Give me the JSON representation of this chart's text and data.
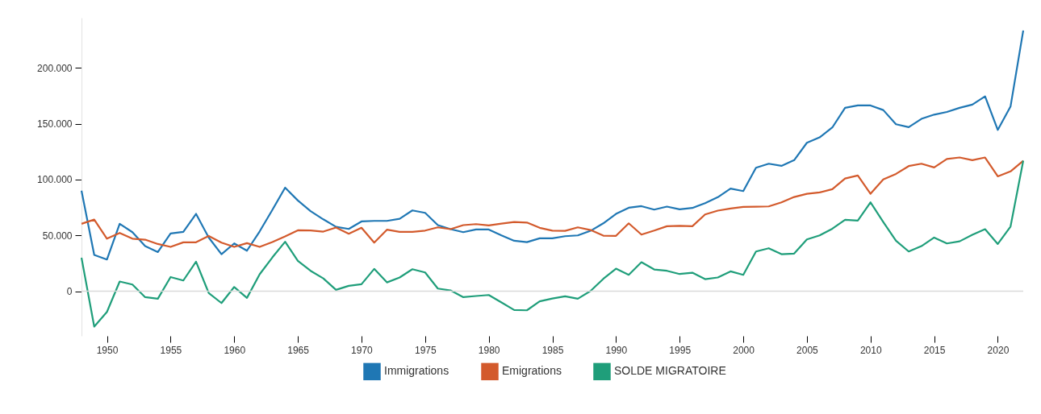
{
  "chart_data": {
    "type": "line",
    "x": [
      1948,
      1949,
      1950,
      1951,
      1952,
      1953,
      1954,
      1955,
      1956,
      1957,
      1958,
      1959,
      1960,
      1961,
      1962,
      1963,
      1964,
      1965,
      1966,
      1967,
      1968,
      1969,
      1970,
      1971,
      1972,
      1973,
      1974,
      1975,
      1976,
      1977,
      1978,
      1979,
      1980,
      1981,
      1982,
      1983,
      1984,
      1985,
      1986,
      1987,
      1988,
      1989,
      1990,
      1991,
      1992,
      1993,
      1994,
      1995,
      1996,
      1997,
      1998,
      1999,
      2000,
      2001,
      2002,
      2003,
      2004,
      2005,
      2006,
      2007,
      2008,
      2009,
      2010,
      2011,
      2012,
      2013,
      2014,
      2015,
      2016,
      2017,
      2018,
      2019,
      2020,
      2021,
      2022
    ],
    "series": [
      {
        "name": "Immigrations",
        "color": "#1f77b4",
        "values": [
          90000,
          32500,
          28400,
          60400,
          52900,
          40400,
          35100,
          51700,
          53200,
          69300,
          48000,
          33200,
          42800,
          36300,
          53600,
          72900,
          92800,
          81300,
          71700,
          64400,
          57700,
          55800,
          62500,
          63000,
          63000,
          64900,
          72400,
          70200,
          59200,
          55600,
          52900,
          55300,
          55300,
          50000,
          45200,
          44000,
          47400,
          47400,
          49300,
          50000,
          54100,
          60800,
          69300,
          74800,
          76200,
          73100,
          75800,
          73400,
          74600,
          78900,
          84200,
          91900,
          89700,
          110600,
          114200,
          112300,
          117400,
          133000,
          137800,
          146700,
          164300,
          166400,
          166400,
          162300,
          149600,
          147000,
          154400,
          158200,
          160600,
          164300,
          167200,
          174600,
          144500,
          165400,
          233500
        ]
      },
      {
        "name": "Emigrations",
        "color": "#d35a2c",
        "values": [
          60400,
          64200,
          47100,
          52200,
          47100,
          46200,
          42300,
          39700,
          43800,
          43800,
          49500,
          43500,
          39700,
          43100,
          39700,
          44000,
          49100,
          54600,
          54400,
          53400,
          57000,
          51500,
          56800,
          43500,
          55100,
          53200,
          53200,
          54300,
          57200,
          55600,
          59200,
          60100,
          58900,
          60600,
          62000,
          61500,
          56800,
          54300,
          54100,
          57200,
          54800,
          49800,
          49600,
          60800,
          50700,
          54300,
          58200,
          58600,
          58200,
          68800,
          72200,
          74100,
          75500,
          75700,
          76000,
          79600,
          84400,
          87300,
          88500,
          91400,
          101000,
          103700,
          87300,
          100100,
          105100,
          112100,
          114200,
          110900,
          118500,
          119800,
          117400,
          119800,
          102900,
          107300,
          116900
        ]
      },
      {
        "name": "SOLDE MIGRATOIRE",
        "color": "#1f9e7a",
        "values": [
          30000,
          -31700,
          -18500,
          8700,
          6000,
          -5300,
          -6700,
          12700,
          9600,
          26500,
          -1700,
          -10600,
          3800,
          -6000,
          15200,
          30300,
          44300,
          27200,
          18300,
          11500,
          1200,
          4800,
          6300,
          20000,
          7900,
          12300,
          19700,
          16800,
          2400,
          700,
          -5300,
          -4300,
          -3400,
          -10100,
          -16800,
          -17100,
          -9100,
          -6500,
          -4600,
          -6700,
          200,
          11100,
          20200,
          14700,
          26000,
          19500,
          18300,
          15400,
          16600,
          10800,
          12300,
          17800,
          14700,
          35600,
          38500,
          33200,
          33700,
          46400,
          50000,
          56000,
          64000,
          63300,
          79600,
          62000,
          45200,
          35600,
          40400,
          48100,
          42800,
          44700,
          50500,
          55600,
          42300,
          57900,
          116900
        ]
      }
    ],
    "xlim": [
      1948,
      2022
    ],
    "xticks": [
      1950,
      1955,
      1960,
      1965,
      1970,
      1975,
      1980,
      1985,
      1990,
      1995,
      2000,
      2005,
      2010,
      2015,
      2020
    ],
    "ylim": [
      -40000,
      245000
    ],
    "yticks": [
      0,
      {
        "value": 50000,
        "label": "50.000"
      },
      {
        "value": 100000,
        "label": "100.000"
      },
      {
        "value": 150000,
        "label": "150.000"
      },
      {
        "value": 200000,
        "label": "200.000"
      }
    ],
    "ref_lines": [
      {
        "axis": "y",
        "value": 0,
        "color": "#d9d9d9"
      }
    ],
    "grid": false,
    "legend": "bottom",
    "marker": "none",
    "line_style": "solid"
  }
}
